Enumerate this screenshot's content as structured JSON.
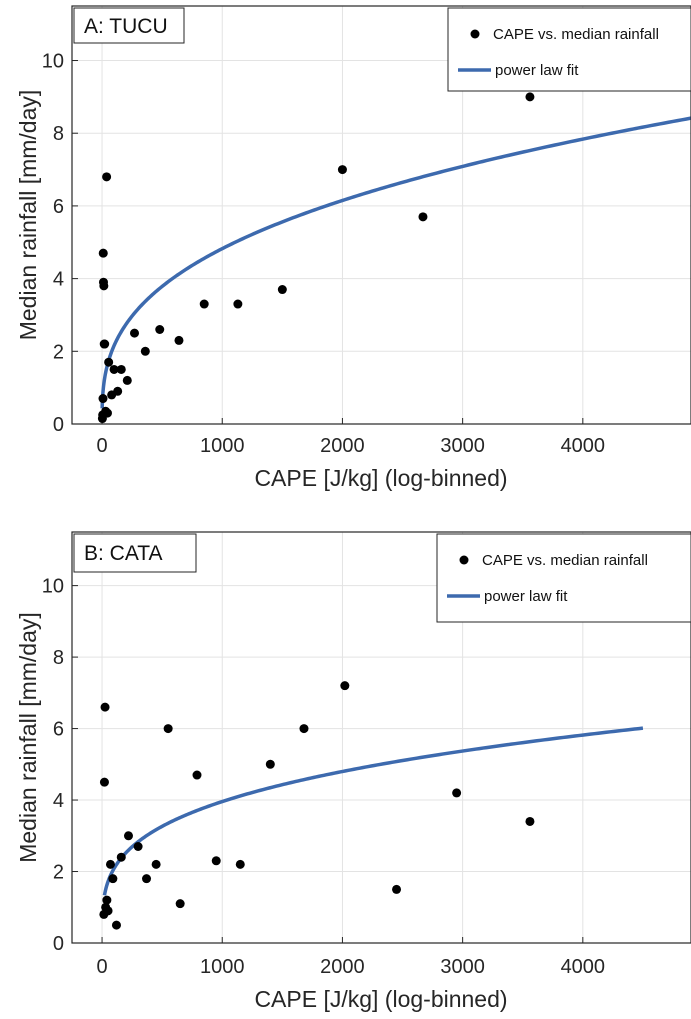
{
  "chart_data": [
    {
      "type": "scatter",
      "panel_label": "A: TUCU",
      "xlabel": "CAPE [J/kg] (log-binned)",
      "ylabel": "Median rainfall [mm/day]",
      "xlim": [
        -250,
        4900
      ],
      "ylim": [
        0,
        11.5
      ],
      "xticks": [
        0,
        1000,
        2000,
        3000,
        4000
      ],
      "yticks": [
        0,
        2,
        4,
        6,
        8,
        10
      ],
      "grid": true,
      "legend_position": "top-right",
      "series": [
        {
          "name": "CAPE vs. median rainfall",
          "kind": "markers",
          "color": "#000000",
          "points": [
            [
              3,
              0.15
            ],
            [
              5,
              0.25
            ],
            [
              8,
              0.7
            ],
            [
              10,
              4.7
            ],
            [
              12,
              3.9
            ],
            [
              15,
              3.8
            ],
            [
              18,
              2.2
            ],
            [
              22,
              2.2
            ],
            [
              30,
              0.35
            ],
            [
              38,
              6.8
            ],
            [
              45,
              0.3
            ],
            [
              55,
              1.7
            ],
            [
              80,
              0.8
            ],
            [
              100,
              1.5
            ],
            [
              130,
              0.9
            ],
            [
              160,
              1.5
            ],
            [
              210,
              1.2
            ],
            [
              270,
              2.5
            ],
            [
              360,
              2.0
            ],
            [
              480,
              2.6
            ],
            [
              640,
              2.3
            ],
            [
              850,
              3.3
            ],
            [
              1130,
              3.3
            ],
            [
              1500,
              3.7
            ],
            [
              2000,
              7.0
            ],
            [
              2670,
              5.7
            ],
            [
              3560,
              9.0
            ]
          ]
        },
        {
          "name": "power law fit",
          "kind": "line",
          "color": "#3d6aae",
          "model": {
            "a": 0.43,
            "b": 0.35,
            "x_start": 1,
            "x_end": 4900
          }
        }
      ]
    },
    {
      "type": "scatter",
      "panel_label": "B: CATA",
      "xlabel": "CAPE [J/kg] (log-binned)",
      "ylabel": "Median rainfall [mm/day]",
      "xlim": [
        -250,
        4900
      ],
      "ylim": [
        0,
        11.5
      ],
      "xticks": [
        0,
        1000,
        2000,
        3000,
        4000
      ],
      "yticks": [
        0,
        2,
        4,
        6,
        8,
        10
      ],
      "grid": true,
      "legend_position": "top-right",
      "series": [
        {
          "name": "CAPE vs. median rainfall",
          "kind": "markers",
          "color": "#000000",
          "points": [
            [
              15,
              0.8
            ],
            [
              20,
              4.5
            ],
            [
              25,
              6.6
            ],
            [
              30,
              1.0
            ],
            [
              40,
              1.2
            ],
            [
              50,
              0.9
            ],
            [
              70,
              2.2
            ],
            [
              90,
              1.8
            ],
            [
              120,
              0.5
            ],
            [
              160,
              2.4
            ],
            [
              220,
              3.0
            ],
            [
              300,
              2.7
            ],
            [
              370,
              1.8
            ],
            [
              450,
              2.2
            ],
            [
              550,
              6.0
            ],
            [
              650,
              1.1
            ],
            [
              790,
              4.7
            ],
            [
              950,
              2.3
            ],
            [
              1150,
              2.2
            ],
            [
              1400,
              5.0
            ],
            [
              1680,
              6.0
            ],
            [
              2020,
              7.2
            ],
            [
              2450,
              1.5
            ],
            [
              2950,
              4.2
            ],
            [
              3560,
              3.4
            ]
          ]
        },
        {
          "name": "power law fit",
          "kind": "line",
          "color": "#3d6aae",
          "model": {
            "a": 0.58,
            "b": 0.278,
            "x_start": 20,
            "x_end": 4500
          }
        }
      ]
    }
  ]
}
